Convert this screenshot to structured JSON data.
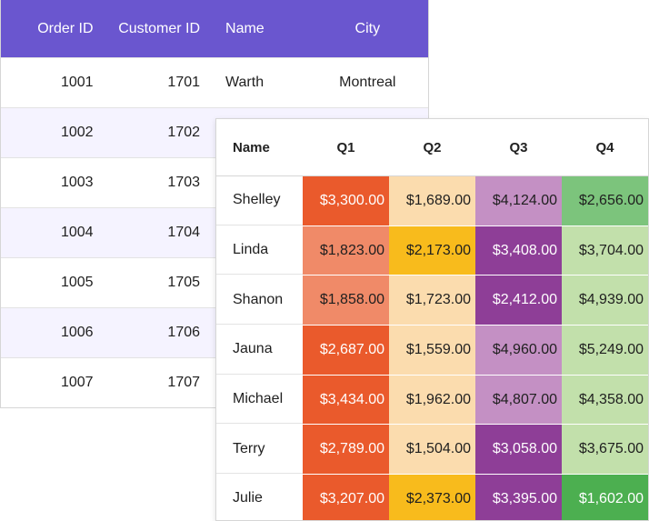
{
  "orders_grid": {
    "columns": [
      "Order ID",
      "Customer ID",
      "Name",
      "City"
    ],
    "rows": [
      {
        "order_id": "1001",
        "customer_id": "1701",
        "name": "Warth",
        "city": "Montreal"
      },
      {
        "order_id": "1002",
        "customer_id": "1702",
        "name": "",
        "city": ""
      },
      {
        "order_id": "1003",
        "customer_id": "1703",
        "name": "",
        "city": ""
      },
      {
        "order_id": "1004",
        "customer_id": "1704",
        "name": "",
        "city": ""
      },
      {
        "order_id": "1005",
        "customer_id": "1705",
        "name": "",
        "city": ""
      },
      {
        "order_id": "1006",
        "customer_id": "1706",
        "name": "",
        "city": ""
      },
      {
        "order_id": "1007",
        "customer_id": "1707",
        "name": "",
        "city": ""
      }
    ],
    "header_bg": "#6a56cf",
    "alt_row_bg": "#f5f3ff"
  },
  "sales_grid": {
    "columns": [
      "Name",
      "Q1",
      "Q2",
      "Q3",
      "Q4"
    ],
    "rows": [
      {
        "name": "Shelley",
        "cells": [
          {
            "v": "$3,300.00",
            "bg": "#ea5a2c",
            "fg": "#ffffff"
          },
          {
            "v": "$1,689.00",
            "bg": "#fbdcae",
            "fg": "#1f1f1f"
          },
          {
            "v": "$4,124.00",
            "bg": "#c490c4",
            "fg": "#1f1f1f"
          },
          {
            "v": "$2,656.00",
            "bg": "#7cc47c",
            "fg": "#1f1f1f"
          }
        ]
      },
      {
        "name": "Linda",
        "cells": [
          {
            "v": "$1,823.00",
            "bg": "#f08a68",
            "fg": "#1f1f1f"
          },
          {
            "v": "$2,173.00",
            "bg": "#f8bb1c",
            "fg": "#1f1f1f"
          },
          {
            "v": "$3,408.00",
            "bg": "#8e3e97",
            "fg": "#ffffff"
          },
          {
            "v": "$3,704.00",
            "bg": "#c2e0ab",
            "fg": "#1f1f1f"
          }
        ]
      },
      {
        "name": "Shanon",
        "cells": [
          {
            "v": "$1,858.00",
            "bg": "#f08a68",
            "fg": "#1f1f1f"
          },
          {
            "v": "$1,723.00",
            "bg": "#fbdcae",
            "fg": "#1f1f1f"
          },
          {
            "v": "$2,412.00",
            "bg": "#8e3e97",
            "fg": "#ffffff"
          },
          {
            "v": "$4,939.00",
            "bg": "#c2e0ab",
            "fg": "#1f1f1f"
          }
        ]
      },
      {
        "name": "Jauna",
        "cells": [
          {
            "v": "$2,687.00",
            "bg": "#ea5a2c",
            "fg": "#ffffff"
          },
          {
            "v": "$1,559.00",
            "bg": "#fbdcae",
            "fg": "#1f1f1f"
          },
          {
            "v": "$4,960.00",
            "bg": "#c490c4",
            "fg": "#1f1f1f"
          },
          {
            "v": "$5,249.00",
            "bg": "#c2e0ab",
            "fg": "#1f1f1f"
          }
        ]
      },
      {
        "name": "Michael",
        "cells": [
          {
            "v": "$3,434.00",
            "bg": "#ea5a2c",
            "fg": "#ffffff"
          },
          {
            "v": "$1,962.00",
            "bg": "#fbdcae",
            "fg": "#1f1f1f"
          },
          {
            "v": "$4,807.00",
            "bg": "#c490c4",
            "fg": "#1f1f1f"
          },
          {
            "v": "$4,358.00",
            "bg": "#c2e0ab",
            "fg": "#1f1f1f"
          }
        ]
      },
      {
        "name": "Terry",
        "cells": [
          {
            "v": "$2,789.00",
            "bg": "#ea5a2c",
            "fg": "#ffffff"
          },
          {
            "v": "$1,504.00",
            "bg": "#fbdcae",
            "fg": "#1f1f1f"
          },
          {
            "v": "$3,058.00",
            "bg": "#8e3e97",
            "fg": "#ffffff"
          },
          {
            "v": "$3,675.00",
            "bg": "#c2e0ab",
            "fg": "#1f1f1f"
          }
        ]
      },
      {
        "name": "Julie",
        "cells": [
          {
            "v": "$3,207.00",
            "bg": "#ea5a2c",
            "fg": "#ffffff"
          },
          {
            "v": "$2,373.00",
            "bg": "#f8bb1c",
            "fg": "#1f1f1f"
          },
          {
            "v": "$3,395.00",
            "bg": "#8e3e97",
            "fg": "#ffffff"
          },
          {
            "v": "$1,602.00",
            "bg": "#4caf50",
            "fg": "#ffffff"
          }
        ]
      }
    ]
  }
}
